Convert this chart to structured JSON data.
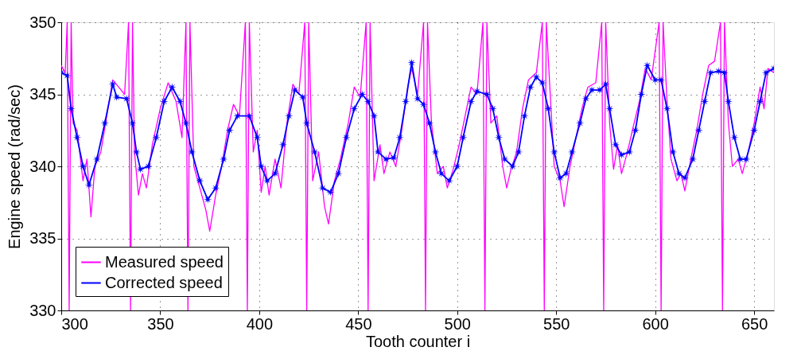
{
  "chart_data": {
    "type": "line",
    "xlabel": "Tooth counter i",
    "ylabel": "Engine speed (rad/sec)",
    "xlim": [
      300,
      660
    ],
    "ylim": [
      330,
      350
    ],
    "xticks": [
      300,
      350,
      400,
      450,
      500,
      550,
      600,
      650
    ],
    "yticks": [
      330,
      335,
      340,
      345,
      350
    ],
    "grid": true,
    "legend": "bottom left",
    "line_style": "solid",
    "series": [
      {
        "name": "Measured speed",
        "color": "#ff00ff",
        "marker": "none",
        "x": [
          300,
          302,
          303,
          304,
          305,
          306,
          308,
          311,
          313,
          315,
          317,
          320,
          323,
          326,
          329,
          332,
          334,
          335,
          336,
          337,
          339,
          341,
          343,
          346,
          350,
          354,
          358,
          361,
          363,
          364,
          365,
          367,
          370,
          373,
          375,
          378,
          381,
          384,
          387,
          390,
          393,
          394,
          395,
          397,
          399,
          401,
          403,
          405,
          408,
          411,
          414,
          417,
          420,
          423,
          424,
          425,
          427,
          430,
          433,
          435,
          438,
          441,
          445,
          448,
          451,
          454,
          455,
          456,
          458,
          461,
          463,
          466,
          469,
          472,
          475,
          477,
          480,
          483,
          484,
          485,
          487,
          490,
          493,
          495,
          498,
          501,
          504,
          507,
          510,
          513,
          514,
          515,
          517,
          520,
          523,
          525,
          527,
          530,
          533,
          536,
          540,
          543,
          544,
          545,
          547,
          549,
          552,
          554,
          557,
          560,
          563,
          566,
          570,
          573,
          574,
          575,
          577,
          579,
          581,
          583,
          586,
          589,
          592,
          595,
          598,
          602,
          603,
          604,
          606,
          608,
          611,
          613,
          615,
          618,
          621,
          624,
          627,
          630,
          633,
          634,
          635,
          637,
          639,
          642,
          644,
          647,
          650,
          653,
          655,
          657,
          660
        ],
        "values": [
          347,
          346.5,
          350,
          330,
          350,
          343,
          342.5,
          339,
          340.5,
          336.5,
          340,
          341,
          343.5,
          346,
          345.5,
          345,
          350,
          330,
          350,
          341,
          338,
          339.5,
          338.5,
          341.5,
          344,
          345.8,
          344.5,
          342,
          350,
          330,
          350,
          340,
          338.5,
          337,
          335.5,
          338,
          340,
          342.5,
          344.3,
          343.5,
          350,
          330,
          350,
          341,
          342.5,
          338.2,
          340,
          338,
          340.5,
          338.5,
          343,
          345.7,
          345,
          350,
          330,
          350,
          339,
          341,
          337.2,
          336,
          339,
          340.5,
          343,
          345.5,
          344.8,
          350,
          330,
          350,
          339,
          341.5,
          339.5,
          341,
          340,
          342.5,
          345.5,
          346.8,
          345,
          350,
          330,
          350,
          343,
          339.5,
          340,
          338.5,
          339.8,
          341.5,
          343.5,
          345.5,
          345,
          350,
          330,
          350,
          343,
          343.5,
          340,
          338.5,
          339.7,
          341,
          344,
          346,
          346.5,
          350,
          330,
          350,
          345,
          340,
          339,
          337.2,
          340,
          342,
          344,
          345.5,
          345.8,
          350,
          330,
          350,
          343,
          339.8,
          341.5,
          339.5,
          341,
          342.8,
          344.5,
          346.8,
          346,
          350,
          330,
          350,
          344.5,
          340.5,
          339,
          339.5,
          338.3,
          340.5,
          342.5,
          345,
          347,
          347.3,
          350,
          330,
          350,
          343,
          340,
          340.5,
          339.5,
          341,
          343,
          345.5,
          344,
          346.8,
          346.5
        ]
      },
      {
        "name": "Corrected speed",
        "color": "#0000ff",
        "marker": "star",
        "x": [
          300,
          303,
          305,
          308,
          311,
          314,
          318,
          322,
          326,
          328,
          333,
          336,
          338,
          340,
          344,
          348,
          352,
          356,
          360,
          363,
          366,
          370,
          374,
          378,
          382,
          385,
          389,
          395,
          399,
          401,
          404,
          408,
          412,
          415,
          418,
          422,
          424,
          428,
          432,
          436,
          440,
          444,
          448,
          452,
          455,
          458,
          460,
          464,
          468,
          471,
          474,
          477,
          480,
          483,
          486,
          489,
          492,
          496,
          500,
          503,
          507,
          510,
          515,
          518,
          521,
          524,
          528,
          531,
          534,
          537,
          540,
          543,
          546,
          549,
          552,
          555,
          558,
          562,
          565,
          568,
          572,
          575,
          577,
          580,
          583,
          587,
          590,
          593,
          596,
          600,
          603,
          606,
          609,
          612,
          615,
          619,
          622,
          625,
          628,
          632,
          635,
          637,
          640,
          643,
          646,
          650,
          653,
          656,
          660
        ],
        "values": [
          346.5,
          346.3,
          344,
          342,
          340,
          338.7,
          340.5,
          343,
          345.7,
          344.8,
          344.7,
          343,
          341,
          339.8,
          340,
          342,
          344.5,
          345.5,
          344.5,
          343,
          341,
          339,
          337.7,
          338.5,
          340.5,
          342.5,
          343.5,
          343.5,
          342,
          340,
          339,
          339.5,
          341.5,
          343.5,
          345.3,
          344.8,
          343,
          341,
          338.5,
          338.2,
          339.5,
          342,
          344,
          345,
          344.5,
          343.5,
          341,
          340.5,
          340.6,
          342,
          344.5,
          347.2,
          344.7,
          344.3,
          343,
          341,
          339.5,
          339,
          340,
          342,
          344.5,
          345.2,
          345,
          344,
          342,
          340.5,
          340,
          341,
          343.5,
          345.5,
          346.2,
          345.8,
          344,
          341,
          339.2,
          339.5,
          341,
          343,
          344.7,
          345.3,
          345.3,
          345.7,
          344,
          341.5,
          340.8,
          341,
          342.5,
          345,
          347,
          346,
          346,
          344,
          341,
          339.5,
          339.2,
          340.5,
          342.5,
          344.5,
          346.5,
          346.6,
          346.5,
          344.5,
          342,
          340.5,
          340.5,
          342.5,
          344.5,
          346.5,
          346.8
        ]
      }
    ]
  }
}
